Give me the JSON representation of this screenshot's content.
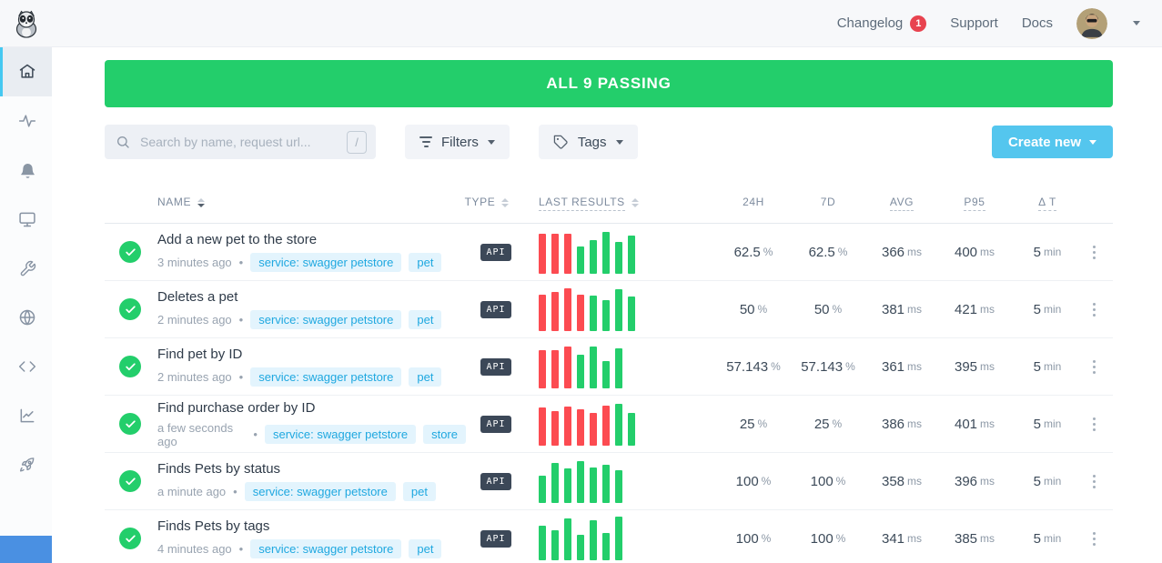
{
  "topbar": {
    "nav": {
      "changelog": "Changelog",
      "changelog_badge": "1",
      "support": "Support",
      "docs": "Docs"
    }
  },
  "sidebar": {
    "icons": [
      "home-icon",
      "activity-icon",
      "bell-icon",
      "monitor-icon",
      "wrench-icon",
      "globe-icon",
      "code-icon",
      "chart-icon",
      "rocket-icon"
    ]
  },
  "banner": {
    "text": "ALL 9 PASSING",
    "color": "#23ce6b"
  },
  "toolbar": {
    "search_placeholder": "Search by name, request url...",
    "search_shortcut": "/",
    "filters_label": "Filters",
    "tags_label": "Tags",
    "create_label": "Create new",
    "create_color": "#54c6ee"
  },
  "table": {
    "headers": {
      "name": "NAME",
      "type": "TYPE",
      "last_results": "LAST RESULTS",
      "h24": "24H",
      "d7": "7D",
      "avg": "AVG",
      "p95": "P95",
      "delta": "Δ T"
    },
    "units": {
      "pct": "%",
      "ms": "ms",
      "min": "min"
    },
    "meta_separator": "•",
    "bar_colors": {
      "r": "#fc4b51",
      "g": "#23ce6b"
    },
    "rows": [
      {
        "name": "Add a new pet to the store",
        "time": "3 minutes ago",
        "tags": [
          "service: swagger petstore",
          "pet"
        ],
        "type": "API",
        "bars": [
          [
            "r",
            44
          ],
          [
            "r",
            44
          ],
          [
            "r",
            44
          ],
          [
            "g",
            30
          ],
          [
            "g",
            37
          ],
          [
            "g",
            46
          ],
          [
            "g",
            35
          ],
          [
            "g",
            42
          ]
        ],
        "h24": "62.5",
        "d7": "62.5",
        "avg": "366",
        "p95": "400",
        "delta": "5"
      },
      {
        "name": "Deletes a pet",
        "time": "2 minutes ago",
        "tags": [
          "service: swagger petstore",
          "pet"
        ],
        "type": "API",
        "bars": [
          [
            "r",
            40
          ],
          [
            "r",
            43
          ],
          [
            "r",
            47
          ],
          [
            "r",
            40
          ],
          [
            "g",
            39
          ],
          [
            "g",
            34
          ],
          [
            "g",
            46
          ],
          [
            "g",
            38
          ]
        ],
        "h24": "50",
        "d7": "50",
        "avg": "381",
        "p95": "421",
        "delta": "5"
      },
      {
        "name": "Find pet by ID",
        "time": "2 minutes ago",
        "tags": [
          "service: swagger petstore",
          "pet"
        ],
        "type": "API",
        "bars": [
          [
            "r",
            42
          ],
          [
            "r",
            42
          ],
          [
            "r",
            46
          ],
          [
            "g",
            37
          ],
          [
            "g",
            46
          ],
          [
            "g",
            30
          ],
          [
            "g",
            44
          ]
        ],
        "h24": "57.143",
        "d7": "57.143",
        "avg": "361",
        "p95": "395",
        "delta": "5"
      },
      {
        "name": "Find purchase order by ID",
        "time": "a few seconds ago",
        "tags": [
          "service: swagger petstore",
          "store"
        ],
        "type": "API",
        "bars": [
          [
            "r",
            42
          ],
          [
            "r",
            38
          ],
          [
            "r",
            43
          ],
          [
            "r",
            40
          ],
          [
            "r",
            36
          ],
          [
            "r",
            44
          ],
          [
            "g",
            46
          ],
          [
            "g",
            36
          ]
        ],
        "h24": "25",
        "d7": "25",
        "avg": "386",
        "p95": "401",
        "delta": "5"
      },
      {
        "name": "Finds Pets by status",
        "time": "a minute ago",
        "tags": [
          "service: swagger petstore",
          "pet"
        ],
        "type": "API",
        "bars": [
          [
            "g",
            30
          ],
          [
            "g",
            44
          ],
          [
            "g",
            38
          ],
          [
            "g",
            46
          ],
          [
            "g",
            39
          ],
          [
            "g",
            42
          ],
          [
            "g",
            36
          ]
        ],
        "h24": "100",
        "d7": "100",
        "avg": "358",
        "p95": "396",
        "delta": "5"
      },
      {
        "name": "Finds Pets by tags",
        "time": "4 minutes ago",
        "tags": [
          "service: swagger petstore",
          "pet"
        ],
        "type": "API",
        "bars": [
          [
            "g",
            38
          ],
          [
            "g",
            33
          ],
          [
            "g",
            46
          ],
          [
            "g",
            28
          ],
          [
            "g",
            44
          ],
          [
            "g",
            30
          ],
          [
            "g",
            48
          ]
        ],
        "h24": "100",
        "d7": "100",
        "avg": "341",
        "p95": "385",
        "delta": "5"
      }
    ]
  }
}
